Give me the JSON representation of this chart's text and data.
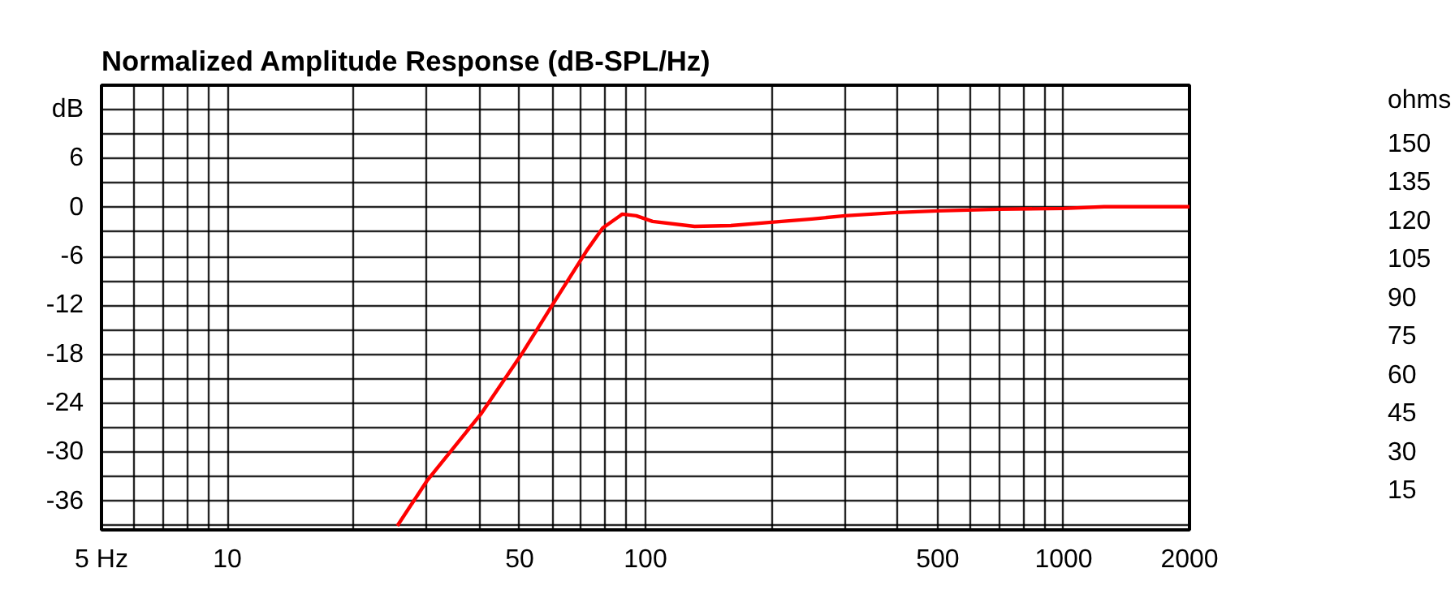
{
  "chart_data": {
    "type": "line",
    "title": "Normalized Amplitude Response (dB-SPL/Hz)",
    "x": [
      25.5,
      30,
      40.4,
      50.5,
      60.8,
      72.5,
      79,
      88,
      95,
      104,
      131,
      160,
      200,
      250,
      300,
      400,
      500,
      700,
      1000,
      1250,
      2000
    ],
    "series": [
      {
        "color": "#ff0000",
        "values": [
          -39,
          -33.5,
          -25.3,
          -18,
          -11.4,
          -5.2,
          -2.5,
          -0.8,
          -1,
          -1.7,
          -2.3,
          -2.2,
          -1.8,
          -1.4,
          -1.0,
          -0.6,
          -0.4,
          -0.2,
          -0.1,
          0.1,
          0.1
        ]
      }
    ],
    "log": "x",
    "xlim": [
      5,
      2000
    ],
    "ylim": [
      -39.5,
      15
    ],
    "y2lim": [
      0,
      173
    ],
    "xticks": [
      {
        "value": 5,
        "label": "5 Hz"
      },
      {
        "value": 6,
        "label": null
      },
      {
        "value": 7,
        "label": null
      },
      {
        "value": 8,
        "label": null
      },
      {
        "value": 9,
        "label": null
      },
      10,
      {
        "value": 20,
        "label": null
      },
      {
        "value": 30,
        "label": null
      },
      {
        "value": 40,
        "label": null
      },
      50,
      {
        "value": 60,
        "label": null
      },
      {
        "value": 70,
        "label": null
      },
      {
        "value": 80,
        "label": null
      },
      {
        "value": 90,
        "label": null
      },
      100,
      {
        "value": 200,
        "label": null
      },
      {
        "value": 300,
        "label": null
      },
      {
        "value": 400,
        "label": null
      },
      500,
      {
        "value": 600,
        "label": null
      },
      {
        "value": 700,
        "label": null
      },
      {
        "value": 800,
        "label": null
      },
      {
        "value": 900,
        "label": null
      },
      1000,
      2000
    ],
    "yticks": [
      {
        "value": 12,
        "label": "dB"
      },
      {
        "value": 9,
        "label": null
      },
      6,
      {
        "value": 3,
        "label": null
      },
      0,
      {
        "value": -3,
        "label": null
      },
      -6,
      {
        "value": -9,
        "label": null
      },
      -12,
      {
        "value": -15,
        "label": null
      },
      -18,
      {
        "value": -21,
        "label": null
      },
      -24,
      {
        "value": -27,
        "label": null
      },
      -30,
      {
        "value": -33,
        "label": null
      },
      -36,
      {
        "value": -39,
        "label": null
      }
    ],
    "y2ticks": [
      {
        "value": 167,
        "label": "ohms"
      },
      15,
      30,
      45,
      60,
      75,
      90,
      105,
      120,
      135,
      150
    ],
    "grid": true,
    "line_style": "solid",
    "marker": "none"
  }
}
